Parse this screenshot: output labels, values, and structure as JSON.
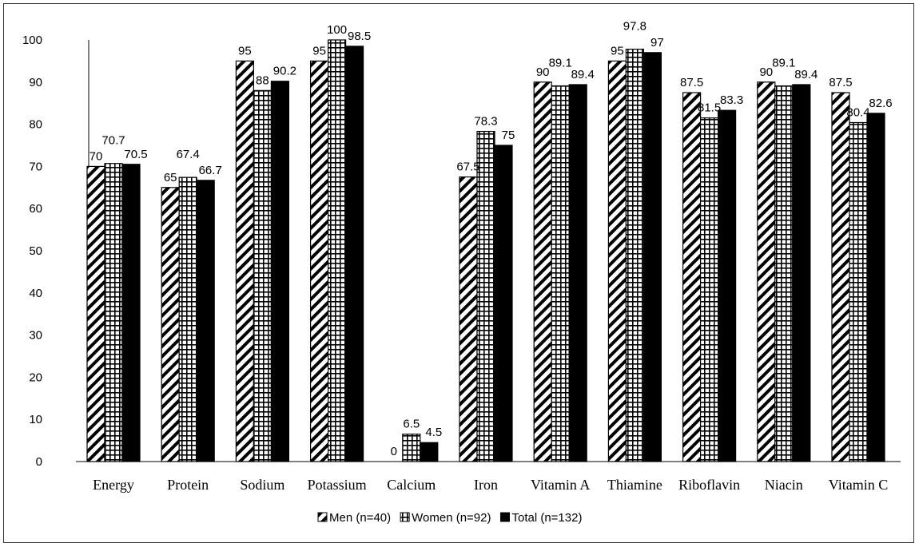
{
  "chart_data": {
    "type": "bar",
    "categories": [
      "Energy",
      "Protein",
      "Sodium",
      "Potassium",
      "Calcium",
      "Iron",
      "Vitamin A",
      "Thiamine",
      "Riboflavin",
      "Niacin",
      "Vitamin C"
    ],
    "series": [
      {
        "name": "Men (n=40)",
        "values": [
          70,
          65,
          95,
          95,
          0,
          67.5,
          90,
          95,
          87.5,
          90,
          87.5
        ],
        "pattern": "diagonal-hatch"
      },
      {
        "name": "Women (n=92)",
        "values": [
          70.7,
          67.4,
          88,
          100,
          6.5,
          78.3,
          89.1,
          97.8,
          81.5,
          89.1,
          80.4
        ],
        "pattern": "grid-hatch"
      },
      {
        "name": "Total (n=132)",
        "values": [
          70.5,
          66.7,
          90.2,
          98.5,
          4.5,
          75,
          89.4,
          97,
          83.3,
          89.4,
          82.6
        ],
        "pattern": "solid-black"
      }
    ],
    "ylim": [
      0,
      100
    ],
    "yticks": [
      0,
      10,
      20,
      30,
      40,
      50,
      60,
      70,
      80,
      90,
      100
    ],
    "grid": false,
    "legend_position": "bottom-center",
    "colors": {
      "bar_stroke": "#000000",
      "solid": "#000000",
      "background": "#ffffff"
    }
  }
}
